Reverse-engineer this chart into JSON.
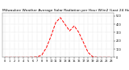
{
  "title": "Milwaukee Weather Average Solar Radiation per Hour W/m2 (Last 24 Hours)",
  "x_values": [
    0,
    1,
    2,
    3,
    4,
    5,
    6,
    7,
    8,
    9,
    10,
    11,
    12,
    13,
    14,
    15,
    16,
    17,
    18,
    19,
    20,
    21,
    22,
    23
  ],
  "y_values": [
    0,
    0,
    0,
    0,
    0,
    0,
    2,
    5,
    30,
    120,
    260,
    420,
    480,
    400,
    320,
    380,
    300,
    180,
    60,
    8,
    0,
    0,
    0,
    0
  ],
  "line_color": "#ff0000",
  "line_style": "--",
  "line_width": 0.7,
  "bg_color": "#ffffff",
  "plot_bg_color": "#ffffff",
  "ylim": [
    0,
    540
  ],
  "xlim": [
    -0.5,
    23.5
  ],
  "yticks": [
    0,
    100,
    200,
    300,
    400,
    500
  ],
  "xticks": [
    0,
    1,
    2,
    3,
    4,
    5,
    6,
    7,
    8,
    9,
    10,
    11,
    12,
    13,
    14,
    15,
    16,
    17,
    18,
    19,
    20,
    21,
    22,
    23
  ],
  "grid_color": "#bbbbbb",
  "title_fontsize": 3.2,
  "tick_fontsize": 2.5,
  "figsize": [
    1.6,
    0.87
  ],
  "dpi": 100
}
